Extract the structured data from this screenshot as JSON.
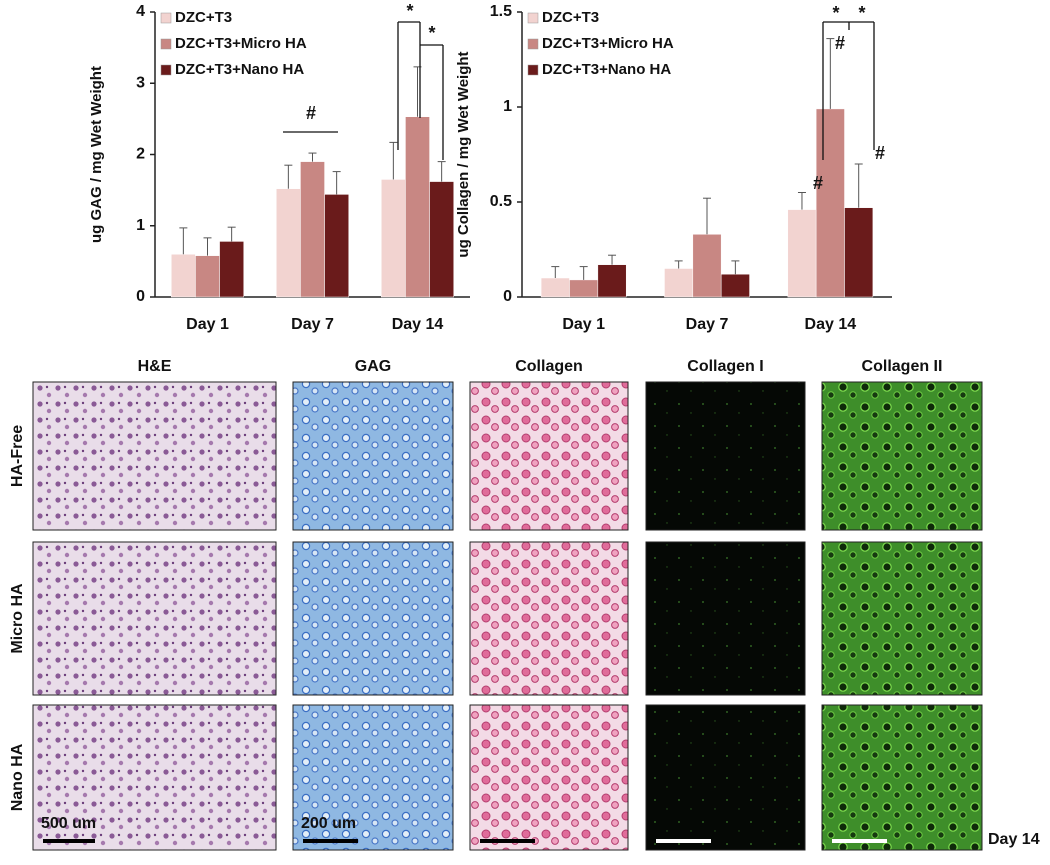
{
  "chart_data": [
    {
      "type": "bar",
      "y_label": "ug GAG / mg Wet Weight",
      "categories": [
        "Day 1",
        "Day 7",
        "Day 14"
      ],
      "series": [
        {
          "name": "DZC+T3",
          "color": "#f2d3d0",
          "values": [
            0.6,
            1.52,
            1.65
          ],
          "errors": [
            0.37,
            0.33,
            0.52
          ]
        },
        {
          "name": "DZC+T3+Micro HA",
          "color": "#c88783",
          "values": [
            0.58,
            1.9,
            2.53
          ],
          "errors": [
            0.25,
            0.12,
            0.7
          ]
        },
        {
          "name": "DZC+T3+Nano HA",
          "color": "#6a1b1b",
          "values": [
            0.78,
            1.44,
            1.62
          ],
          "errors": [
            0.2,
            0.32,
            0.28
          ]
        }
      ],
      "ylim": [
        0,
        4
      ],
      "yticks": [
        0,
        1,
        2,
        3,
        4
      ],
      "legend": "upper left",
      "annotations": [
        "#",
        "*",
        "*"
      ]
    },
    {
      "type": "bar",
      "y_label": "ug Collagen / mg Wet Weight",
      "categories": [
        "Day 1",
        "Day 7",
        "Day 14"
      ],
      "series": [
        {
          "name": "DZC+T3",
          "color": "#f2d3d0",
          "values": [
            0.1,
            0.15,
            0.46
          ],
          "errors": [
            0.06,
            0.04,
            0.09
          ]
        },
        {
          "name": "DZC+T3+Micro HA",
          "color": "#c88783",
          "values": [
            0.09,
            0.33,
            0.99
          ],
          "errors": [
            0.07,
            0.19,
            0.37
          ]
        },
        {
          "name": "DZC+T3+Nano HA",
          "color": "#6a1b1b",
          "values": [
            0.17,
            0.12,
            0.47
          ],
          "errors": [
            0.05,
            0.07,
            0.23
          ]
        }
      ],
      "ylim": [
        0,
        1.5
      ],
      "yticks": [
        0,
        0.5,
        1,
        1.5
      ],
      "legend": "upper left",
      "annotations": [
        "*",
        "*",
        "#",
        "#",
        "#"
      ]
    }
  ],
  "panels": {
    "columns": [
      "H&E",
      "GAG",
      "Collagen",
      "Collagen I",
      "Collagen II"
    ],
    "rows": [
      "HA-Free",
      "Micro HA",
      "Nano HA"
    ],
    "scale_labels": [
      "500 um",
      "200 um"
    ],
    "footer": "Day 14"
  }
}
